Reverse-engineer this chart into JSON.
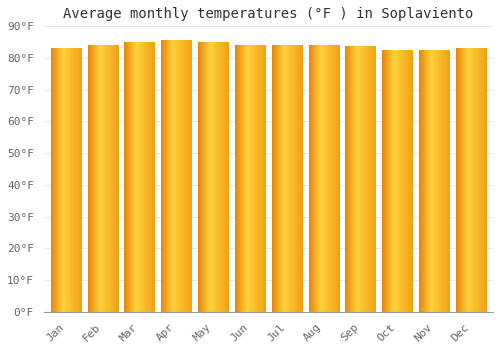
{
  "title": "Average monthly temperatures (°F ) in Soplaviento",
  "months": [
    "Jan",
    "Feb",
    "Mar",
    "Apr",
    "May",
    "Jun",
    "Jul",
    "Aug",
    "Sep",
    "Oct",
    "Nov",
    "Dec"
  ],
  "values": [
    83,
    84,
    85,
    85.5,
    85,
    84,
    84,
    84,
    83.5,
    82.5,
    82.5,
    83
  ],
  "bar_color_main": "#FFBB00",
  "bar_color_left": "#E8860A",
  "bar_color_right": "#FFD040",
  "ylim": [
    0,
    90
  ],
  "yticks": [
    0,
    10,
    20,
    30,
    40,
    50,
    60,
    70,
    80,
    90
  ],
  "ytick_labels": [
    "0°F",
    "10°F",
    "20°F",
    "30°F",
    "40°F",
    "50°F",
    "60°F",
    "70°F",
    "80°F",
    "90°F"
  ],
  "background_color": "#FFFFFF",
  "plot_bg_color": "#FFFFFF",
  "grid_color": "#E8E8E8",
  "title_fontsize": 10,
  "tick_fontsize": 8,
  "font_family": "monospace",
  "bar_width": 0.82
}
